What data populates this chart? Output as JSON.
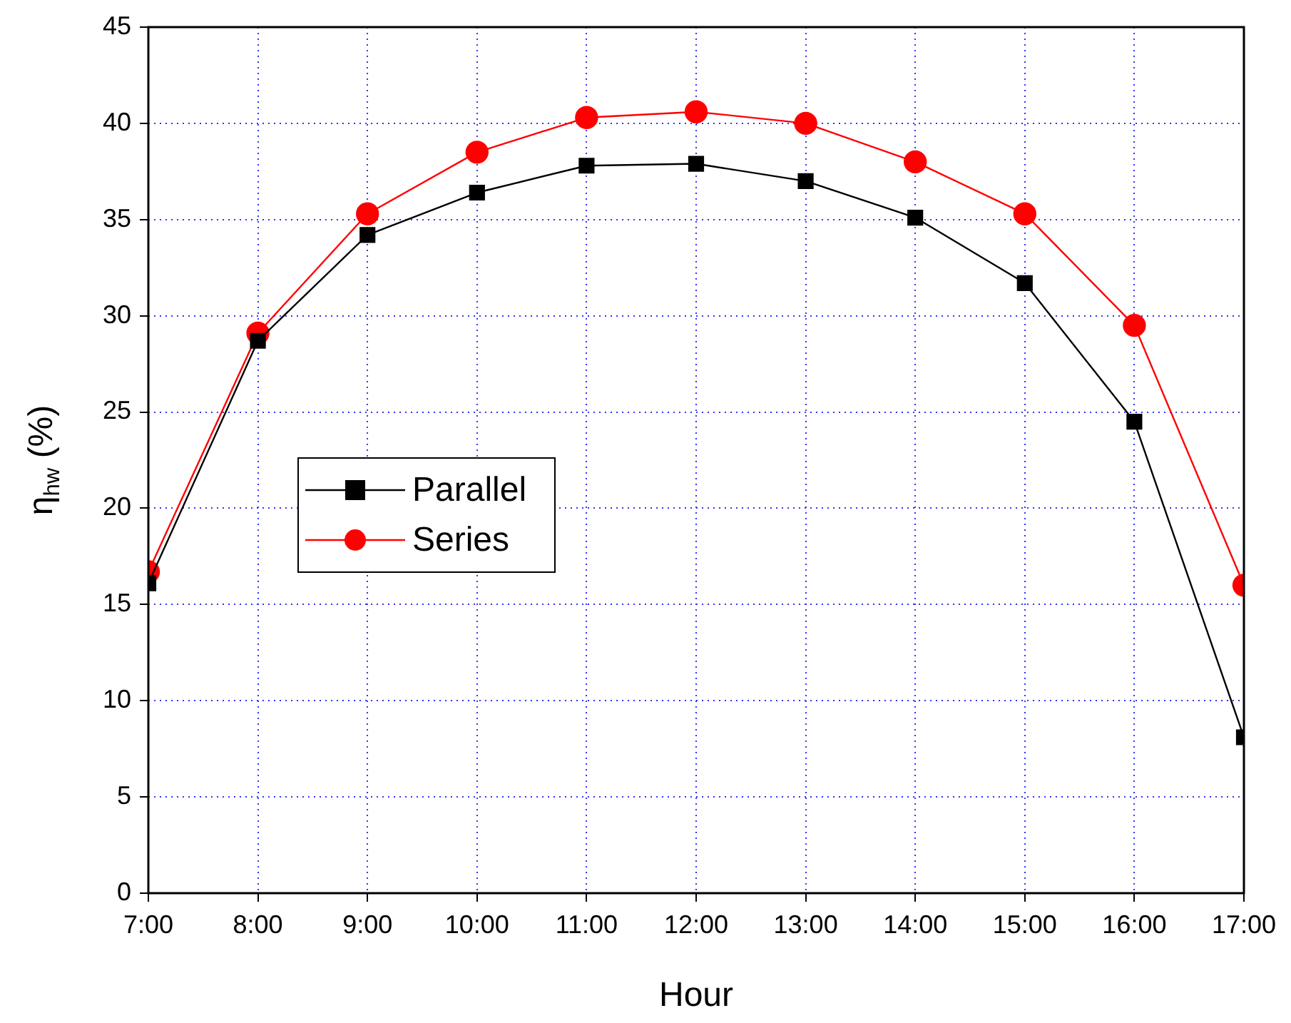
{
  "chart_data": {
    "type": "line",
    "xlabel": "Hour",
    "ylabel": "η$_{hw}$ (%)",
    "x": [
      7,
      8,
      9,
      10,
      11,
      12,
      13,
      14,
      15,
      16,
      17
    ],
    "series": [
      {
        "name": "Parallel",
        "color": "#000000",
        "marker": "square",
        "values": [
          16.1,
          28.7,
          34.2,
          36.4,
          37.8,
          37.9,
          37.0,
          35.1,
          31.7,
          24.5,
          8.1
        ]
      },
      {
        "name": "Series",
        "color": "#ff0000",
        "marker": "circle",
        "values": [
          16.7,
          29.1,
          35.3,
          38.5,
          40.3,
          40.6,
          40.0,
          38.0,
          35.3,
          29.5,
          16.0
        ]
      }
    ],
    "xlim": [
      7,
      17
    ],
    "xticks": [
      {
        "value": 7,
        "label": "7:00"
      },
      {
        "value": 8,
        "label": "8:00"
      },
      {
        "value": 9,
        "label": "9:00"
      },
      {
        "value": 10,
        "label": "10:00"
      },
      {
        "value": 11,
        "label": "11:00"
      },
      {
        "value": 12,
        "label": "12:00"
      },
      {
        "value": 13,
        "label": "13:00"
      },
      {
        "value": 14,
        "label": "14:00"
      },
      {
        "value": 15,
        "label": "15:00"
      },
      {
        "value": 16,
        "label": "16:00"
      },
      {
        "value": 17,
        "label": "17:00"
      }
    ],
    "ylim": [
      0,
      45
    ],
    "yticks": [
      0,
      5,
      10,
      15,
      20,
      25,
      30,
      35,
      40,
      45
    ],
    "grid": true,
    "legend": "bottom left",
    "line_style": "solid"
  }
}
